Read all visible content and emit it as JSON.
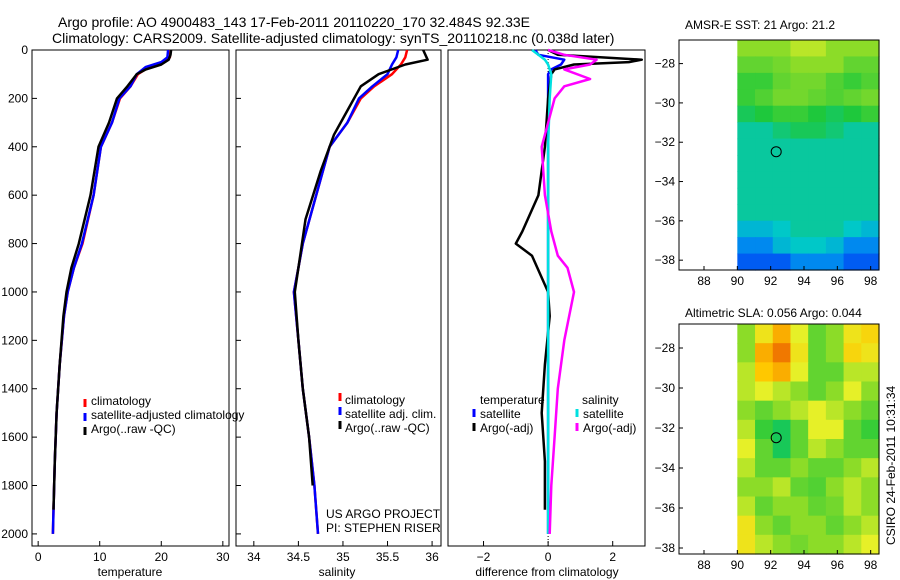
{
  "header": {
    "line1": "Argo profile: AO 4900483_143 17-Feb-2011 20110220_170 32.484S 92.33E",
    "line2": "Climatology: CARS2009. Satellite-adjusted climatology: synTS_20110218.nc (0.038d later)"
  },
  "side_label": "CSIRO 24-Feb-2011 10:31:34",
  "colors": {
    "red": "#ff0000",
    "blue": "#0000ff",
    "black": "#000000",
    "cyan": "#00e0e0",
    "magenta": "#ff00ff"
  },
  "chart_data": [
    {
      "type": "line",
      "id": "temperature",
      "xlabel": "temperature",
      "ylabel": "",
      "xlim": [
        -1,
        31
      ],
      "ylim": [
        0,
        2050
      ],
      "y_reversed": true,
      "xticks": [
        0,
        10,
        20,
        30
      ],
      "yticks": [
        0,
        200,
        400,
        600,
        800,
        1000,
        1200,
        1400,
        1600,
        1800,
        2000
      ],
      "legend": {
        "placement": "bottom-right",
        "entries": [
          "climatology",
          "satellite-adjusted climatology",
          "Argo(..raw -QC)"
        ]
      },
      "series": [
        {
          "name": "climatology",
          "color": "red",
          "x": [
            21.5,
            21.4,
            20.5,
            18,
            16.2,
            15,
            13.3,
            12,
            10.2,
            9,
            7.2,
            5.8,
            4.8,
            4.2,
            3.5,
            3,
            2.7,
            2.5,
            2.4
          ],
          "y": [
            0,
            30,
            50,
            70,
            100,
            150,
            200,
            300,
            400,
            600,
            800,
            900,
            1000,
            1100,
            1300,
            1500,
            1700,
            1900,
            2000
          ]
        },
        {
          "name": "satellite-adjusted climatology",
          "color": "blue",
          "x": [
            21.1,
            21,
            20,
            17.5,
            16,
            15,
            13.2,
            12,
            10.2,
            9,
            7.1,
            5.8,
            4.8,
            4.2,
            3.5,
            3,
            2.7,
            2.5,
            2.4
          ],
          "y": [
            0,
            30,
            50,
            70,
            100,
            150,
            200,
            300,
            400,
            600,
            800,
            900,
            1000,
            1100,
            1300,
            1500,
            1700,
            1900,
            2000
          ]
        },
        {
          "name": "Argo(..raw -QC)",
          "color": "black",
          "x": [
            21.6,
            21.5,
            21.2,
            20,
            17.5,
            16,
            14.5,
            12.8,
            11.5,
            9.8,
            8.5,
            6.6,
            5.4,
            4.6,
            4.1,
            3.5,
            3,
            2.7,
            2.5
          ],
          "y": [
            0,
            20,
            40,
            60,
            80,
            100,
            150,
            200,
            300,
            400,
            600,
            800,
            900,
            1000,
            1100,
            1300,
            1500,
            1700,
            1900
          ]
        }
      ]
    },
    {
      "type": "line",
      "id": "salinity",
      "xlabel": "salinity",
      "ylabel": "",
      "xlim": [
        33.8,
        36.1
      ],
      "ylim": [
        0,
        2050
      ],
      "y_reversed": true,
      "xticks": [
        34,
        34.5,
        35,
        35.5,
        36
      ],
      "xtick_labels": [
        "34",
        "34.5",
        "35",
        "35.5",
        "36"
      ],
      "yticks": [
        0,
        200,
        400,
        600,
        800,
        1000,
        1200,
        1400,
        1600,
        1800,
        2000
      ],
      "legend": {
        "placement": "bottom-right",
        "entries": [
          "climatology",
          "satellite adj. clim.",
          "Argo(..raw -QC)"
        ]
      },
      "annotation": [
        "US ARGO PROJECT",
        "PI: STEPHEN RISER"
      ],
      "series": [
        {
          "name": "climatology",
          "color": "red",
          "x": [
            35.72,
            35.7,
            35.65,
            35.55,
            35.35,
            35.2,
            35.05,
            34.85,
            34.7,
            34.55,
            34.5,
            34.45,
            34.5,
            34.55,
            34.62,
            34.68,
            34.72
          ],
          "y": [
            0,
            30,
            60,
            100,
            150,
            200,
            300,
            400,
            600,
            800,
            900,
            1000,
            1200,
            1400,
            1600,
            1800,
            2000
          ]
        },
        {
          "name": "satellite adj. clim.",
          "color": "blue",
          "x": [
            35.62,
            35.6,
            35.55,
            35.5,
            35.33,
            35.18,
            35.05,
            34.85,
            34.7,
            34.55,
            34.5,
            34.45,
            34.5,
            34.55,
            34.62,
            34.68,
            34.72
          ],
          "y": [
            0,
            30,
            60,
            100,
            150,
            200,
            300,
            400,
            600,
            800,
            900,
            1000,
            1200,
            1400,
            1600,
            1800,
            2000
          ]
        },
        {
          "name": "Argo(..raw -QC)",
          "color": "black",
          "x": [
            35.9,
            35.95,
            35.7,
            35.4,
            35.2,
            35.05,
            34.9,
            34.75,
            34.58,
            34.52,
            34.48,
            34.46,
            34.5,
            34.55,
            34.62,
            34.66
          ],
          "y": [
            0,
            40,
            60,
            100,
            150,
            250,
            350,
            500,
            700,
            850,
            950,
            1000,
            1200,
            1400,
            1600,
            1800
          ]
        }
      ]
    },
    {
      "type": "line",
      "id": "difference",
      "xlabel": "difference from climatology",
      "ylabel": "",
      "xlim": [
        -3.1,
        3
      ],
      "ylim": [
        0,
        2050
      ],
      "y_reversed": true,
      "xticks": [
        -2,
        0,
        2
      ],
      "yticks": [
        0,
        200,
        400,
        600,
        800,
        1000,
        1200,
        1400,
        1600,
        1800,
        2000
      ],
      "legend": {
        "placement": "bottom",
        "groups": [
          {
            "title": "temperature",
            "entries": [
              "satellite",
              "Argo(-adj)"
            ]
          },
          {
            "title": "salinity",
            "entries": [
              "satellite",
              "Argo(-adj)"
            ]
          }
        ]
      },
      "series": [
        {
          "name": "temperature satellite",
          "color": "blue",
          "x": [
            -0.4,
            -0.3,
            0.5,
            0.4,
            0.1,
            0,
            0,
            0,
            0,
            0,
            0
          ],
          "y": [
            0,
            20,
            40,
            60,
            80,
            100,
            200,
            400,
            800,
            1200,
            2000
          ]
        },
        {
          "name": "temperature Argo(-adj)",
          "color": "black",
          "x": [
            0,
            0.3,
            2.9,
            2.5,
            0.8,
            0.2,
            0.1,
            0,
            -0.1,
            -0.3,
            -0.8,
            -1.0,
            -0.5,
            0,
            0.05,
            -0.1,
            -0.2,
            -0.1,
            -0.1
          ],
          "y": [
            0,
            20,
            40,
            50,
            60,
            80,
            100,
            200,
            400,
            600,
            750,
            800,
            850,
            1000,
            1100,
            1300,
            1500,
            1700,
            1900
          ]
        },
        {
          "name": "salinity satellite",
          "color": "cyan",
          "x": [
            -0.5,
            -0.3,
            -0.1,
            0,
            0.1,
            0.05,
            0,
            0,
            0,
            0,
            0
          ],
          "y": [
            0,
            20,
            40,
            60,
            100,
            200,
            400,
            800,
            1200,
            1600,
            2000
          ]
        },
        {
          "name": "salinity Argo(-adj)",
          "color": "magenta",
          "x": [
            0,
            0.5,
            1.5,
            1.3,
            0.5,
            1.3,
            0.5,
            0.2,
            -0.2,
            -0.1,
            0.1,
            0.3,
            0.6,
            0.8,
            0.5,
            0.3,
            0.2,
            0.1,
            0.05
          ],
          "y": [
            0,
            20,
            40,
            60,
            80,
            120,
            150,
            200,
            400,
            600,
            750,
            850,
            900,
            1000,
            1200,
            1400,
            1600,
            1800,
            2000
          ]
        }
      ]
    },
    {
      "type": "heatmap",
      "id": "sst-map",
      "title": "AMSR-E SST: 21 Argo: 21.2",
      "xlim": [
        86.5,
        98.5
      ],
      "ylim": [
        -38.5,
        -26.8
      ],
      "xticks": [
        88,
        90,
        92,
        94,
        96,
        98
      ],
      "yticks": [
        -28,
        -30,
        -32,
        -34,
        -36,
        -38
      ],
      "data_x_start": 90,
      "marker": {
        "lon": 92.33,
        "lat": -32.484
      },
      "rows": [
        [
          0.45,
          0.45,
          0.45,
          0.5,
          0.5,
          0.45,
          0.45,
          0.45
        ],
        [
          0.4,
          0.4,
          0.42,
          0.45,
          0.45,
          0.45,
          0.4,
          0.4
        ],
        [
          0.35,
          0.35,
          0.4,
          0.42,
          0.42,
          0.38,
          0.35,
          0.38
        ],
        [
          0.35,
          0.38,
          0.42,
          0.42,
          0.4,
          0.38,
          0.4,
          0.42
        ],
        [
          0.3,
          0.32,
          0.35,
          0.35,
          0.32,
          0.3,
          0.32,
          0.35
        ],
        [
          0.25,
          0.25,
          0.28,
          0.3,
          0.3,
          0.28,
          0.25,
          0.25
        ],
        [
          0.25,
          0.25,
          0.25,
          0.25,
          0.25,
          0.25,
          0.25,
          0.25
        ],
        [
          0.25,
          0.25,
          0.25,
          0.25,
          0.25,
          0.25,
          0.25,
          0.25
        ],
        [
          0.25,
          0.25,
          0.25,
          0.25,
          0.25,
          0.25,
          0.25,
          0.25
        ],
        [
          0.25,
          0.25,
          0.25,
          0.25,
          0.25,
          0.25,
          0.25,
          0.25
        ],
        [
          0.25,
          0.25,
          0.25,
          0.25,
          0.25,
          0.25,
          0.25,
          0.25
        ],
        [
          0.2,
          0.2,
          0.22,
          0.25,
          0.25,
          0.25,
          0.22,
          0.2
        ],
        [
          0.15,
          0.15,
          0.2,
          0.22,
          0.22,
          0.2,
          0.15,
          0.15
        ],
        [
          0.1,
          0.1,
          0.1,
          0.15,
          0.15,
          0.15,
          0.1,
          0.1
        ]
      ]
    },
    {
      "type": "heatmap",
      "id": "sla-map",
      "title": "Altimetric SLA: 0.056 Argo: 0.044",
      "xlim": [
        86.5,
        98.5
      ],
      "ylim": [
        -38.3,
        -26.8
      ],
      "xticks": [
        88,
        90,
        92,
        94,
        96,
        98
      ],
      "yticks": [
        -28,
        -30,
        -32,
        -34,
        -36,
        -38
      ],
      "data_x_start": 90,
      "marker": {
        "lon": 92.33,
        "lat": -32.484
      },
      "rows": [
        [
          0.45,
          0.6,
          0.75,
          0.55,
          0.4,
          0.45,
          0.6,
          0.65
        ],
        [
          0.45,
          0.75,
          0.85,
          0.6,
          0.4,
          0.45,
          0.65,
          0.6
        ],
        [
          0.5,
          0.7,
          0.75,
          0.55,
          0.4,
          0.4,
          0.5,
          0.5
        ],
        [
          0.5,
          0.55,
          0.5,
          0.45,
          0.4,
          0.45,
          0.55,
          0.45
        ],
        [
          0.45,
          0.4,
          0.45,
          0.5,
          0.55,
          0.5,
          0.45,
          0.4
        ],
        [
          0.5,
          0.35,
          0.3,
          0.4,
          0.55,
          0.55,
          0.4,
          0.35
        ],
        [
          0.55,
          0.4,
          0.3,
          0.4,
          0.5,
          0.45,
          0.4,
          0.4
        ],
        [
          0.5,
          0.4,
          0.4,
          0.45,
          0.4,
          0.4,
          0.45,
          0.5
        ],
        [
          0.45,
          0.45,
          0.5,
          0.4,
          0.38,
          0.45,
          0.5,
          0.45
        ],
        [
          0.5,
          0.4,
          0.45,
          0.45,
          0.4,
          0.42,
          0.5,
          0.45
        ],
        [
          0.6,
          0.45,
          0.4,
          0.45,
          0.45,
          0.4,
          0.45,
          0.5
        ],
        [
          0.6,
          0.5,
          0.45,
          0.42,
          0.45,
          0.45,
          0.5,
          0.55
        ]
      ]
    }
  ]
}
